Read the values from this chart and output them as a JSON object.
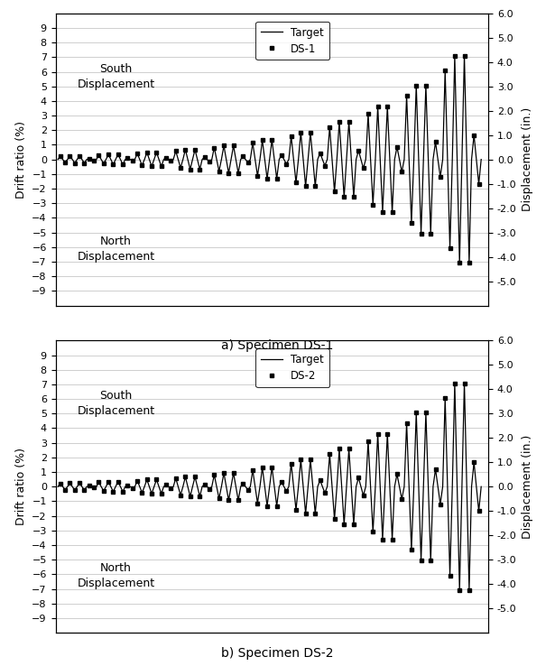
{
  "title_a": "a) Specimen DS-1",
  "title_b": "b) Specimen DS-2",
  "legend_label_a": "DS-1",
  "legend_label_b": "DS-2",
  "legend_target": "Target",
  "ylabel_left": "Drift ratio (%)",
  "ylabel_right": "Displacement (in.)",
  "ylim": [
    -10,
    10
  ],
  "ylim_right": [
    -6.0,
    6.0
  ],
  "yticks_left": [
    -9,
    -8,
    -7,
    -6,
    -5,
    -4,
    -3,
    -2,
    -1,
    0,
    1,
    2,
    3,
    4,
    5,
    6,
    7,
    8,
    9
  ],
  "yticks_right": [
    -5.0,
    -4.0,
    -3.0,
    -2.0,
    -1.0,
    0.0,
    1.0,
    2.0,
    3.0,
    4.0,
    5.0,
    6.0
  ],
  "south_label": "South\nDisplacement",
  "north_label": "North\nDisplacement",
  "initial_amplitude": 0.175,
  "cycle_multipliers": [
    1.2,
    1.4,
    1.4,
    0.33
  ],
  "num_sets": 11,
  "background_color": "#ffffff",
  "line_color": "#000000",
  "grid_color": "#c8c8c8",
  "figsize": [
    6.15,
    7.38
  ],
  "dpi": 100
}
